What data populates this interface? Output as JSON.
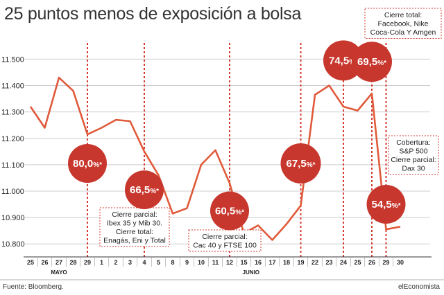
{
  "title": "25 puntos menos de exposición a bolsa",
  "source": "Fuente: Bloomberg.",
  "brand": "elEconomista",
  "colors": {
    "line": "#e05a3a",
    "bubble": "#c8372d",
    "dashed": "#d43a2f",
    "grid": "#cccccc",
    "text": "#222222"
  },
  "chart_data": {
    "type": "line",
    "title": "25 puntos menos de exposición a bolsa",
    "xlabel": "",
    "ylabel": "",
    "ylim": [
      10750,
      11550
    ],
    "yticks": [
      10800,
      10900,
      11000,
      11100,
      11200,
      11300,
      11400,
      11500
    ],
    "ytick_labels": [
      "10.800",
      "10.900",
      "11.000",
      "11.100",
      "11.200",
      "11.300",
      "11.400",
      "11.500"
    ],
    "x_tick_labels": [
      "25",
      "26",
      "27",
      "28",
      "29",
      "1",
      "2",
      "3",
      "4",
      "5",
      "8",
      "9",
      "10",
      "11",
      "12",
      "15",
      "16",
      "17",
      "18",
      "19",
      "22",
      "23",
      "24",
      "25",
      "26",
      "29",
      "30"
    ],
    "month_labels": [
      {
        "text": "MAYO",
        "at": 2
      },
      {
        "text": "JUNIO",
        "at": 15.5
      }
    ],
    "grid": "horizontal",
    "series": [
      {
        "x": [
          0,
          1,
          2,
          3,
          4,
          5,
          6,
          7,
          8,
          9,
          10,
          11,
          12,
          13,
          14,
          15,
          16,
          17,
          18,
          19,
          20,
          21,
          22,
          23,
          24,
          25,
          26
        ],
        "values": [
          11320,
          11240,
          11430,
          11380,
          11215,
          11240,
          11270,
          11265,
          11150,
          11060,
          10915,
          10935,
          11100,
          11155,
          11030,
          10840,
          10870,
          10815,
          10875,
          10945,
          11365,
          11400,
          11320,
          11305,
          11370,
          10855,
          10865
        ]
      }
    ],
    "dashed_markers": [
      4,
      8,
      14,
      19,
      22,
      24,
      25
    ],
    "bubbles": [
      {
        "label": "80,0%*",
        "x": 4,
        "y": 11105,
        "r": 28
      },
      {
        "label": "66,5%*",
        "x": 8,
        "y": 11005,
        "r": 28
      },
      {
        "label": "60,5%*",
        "x": 14,
        "y": 10925,
        "r": 28
      },
      {
        "label": "67,5%*",
        "x": 19,
        "y": 11105,
        "r": 29
      },
      {
        "label": "74,5%*",
        "x": 22,
        "y": 11495,
        "r": 29
      },
      {
        "label": "69,5%*",
        "x": 24,
        "y": 11490,
        "r": 29
      },
      {
        "label": "54,5%*",
        "x": 25,
        "y": 10950,
        "r": 28
      }
    ],
    "annotations": [
      {
        "lines": [
          "Cierre parcial:",
          "Ibex 35 y Mib 30.",
          "Cierre total:",
          "Enagás, Eni y Total"
        ],
        "anchor": 8
      },
      {
        "lines": [
          "Cierre parcial:",
          "Cac 40  y FTSE 100"
        ],
        "anchor": 14
      },
      {
        "lines": [
          "Cierre total:",
          "Facebook, Nike",
          "Coca-Cola Y Amgen"
        ],
        "anchor": 24
      },
      {
        "lines": [
          "Cobertura:",
          "S&P 500",
          "Cierre parcial:",
          "Dax 30"
        ],
        "anchor": 25
      }
    ]
  }
}
